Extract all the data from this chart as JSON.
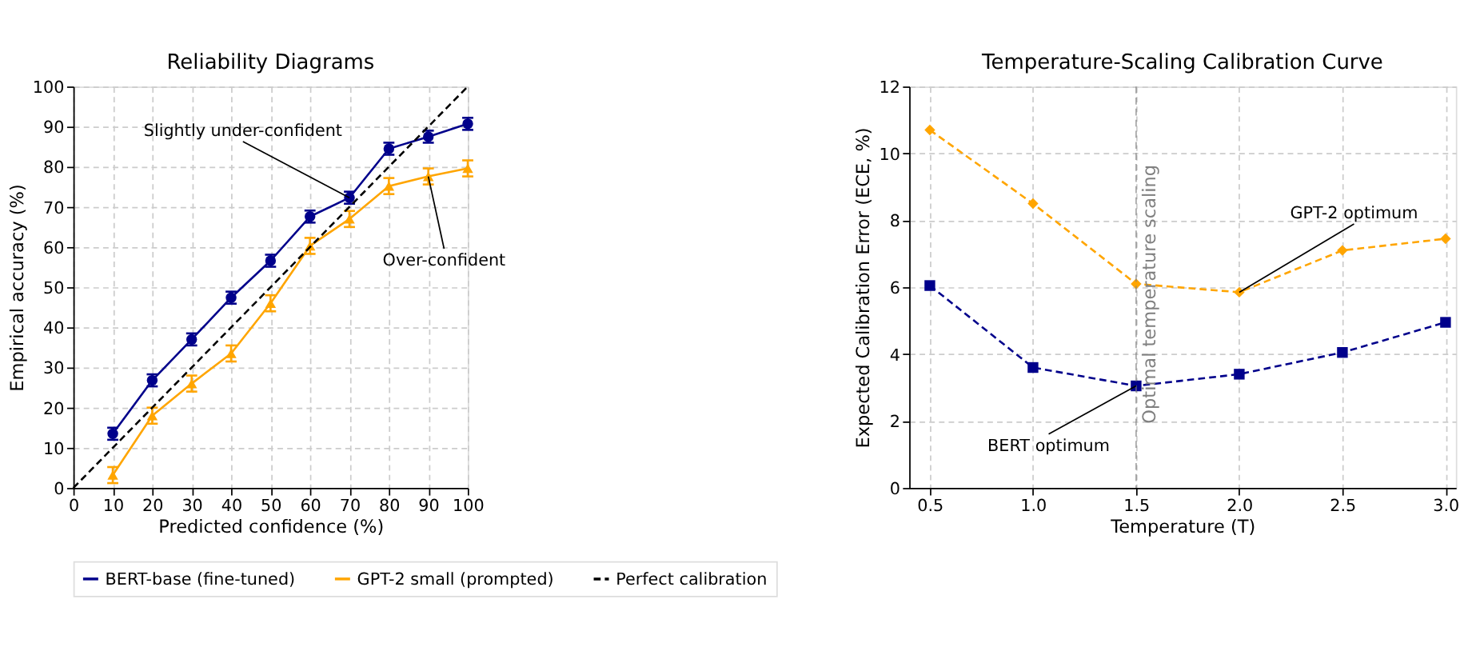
{
  "chart_data": [
    {
      "type": "line",
      "title": "Reliability Diagrams",
      "xlabel": "Predicted confidence (%)",
      "ylabel": "Empirical accuracy (%)",
      "x": [
        10,
        20,
        30,
        40,
        50,
        60,
        70,
        80,
        90,
        100
      ],
      "xlim": [
        0,
        100
      ],
      "xticks": [
        0,
        10,
        20,
        30,
        40,
        50,
        60,
        70,
        80,
        90,
        100
      ],
      "ylim": [
        0,
        100
      ],
      "yticks": [
        0,
        10,
        20,
        30,
        40,
        50,
        60,
        70,
        80,
        90,
        100
      ],
      "grid": true,
      "legend": "bottom",
      "series": [
        {
          "name": "BERT-base (fine-tuned)",
          "color": "#00008b",
          "marker": "circle",
          "line_style": "solid",
          "values": [
            13.5,
            26.8,
            37,
            47.4,
            56.6,
            67.6,
            72.3,
            84.5,
            87.5,
            90.7
          ],
          "errors": [
            1.5,
            1.5,
            1.5,
            1.5,
            1.5,
            1.5,
            1.5,
            1.5,
            1.5,
            1.5
          ]
        },
        {
          "name": "GPT-2 small (prompted)",
          "color": "#ffa500",
          "marker": "triangle",
          "line_style": "solid",
          "values": [
            3.2,
            18,
            26,
            33.5,
            46,
            60.3,
            67,
            75.2,
            77.6,
            79.6
          ],
          "errors": [
            2,
            2,
            2,
            2,
            2,
            2,
            2,
            2,
            2,
            2
          ]
        },
        {
          "name": "Perfect calibration",
          "color": "#000000",
          "marker": "none",
          "line_style": "dashed",
          "x": [
            0,
            100
          ],
          "values": [
            0,
            100
          ]
        }
      ],
      "annotations": [
        {
          "text": "Slightly under-confident",
          "x": 70,
          "y": 72.3
        },
        {
          "text": "Over-confident",
          "x": 90,
          "y": 77.6
        }
      ]
    },
    {
      "type": "line",
      "title": "Temperature-Scaling Calibration Curve",
      "xlabel": "Temperature (T)",
      "ylabel": "Expected Calibration Error (ECE, %)",
      "x": [
        0.5,
        1.0,
        1.5,
        2.0,
        2.5,
        3.0
      ],
      "xlim": [
        0.4,
        3.05
      ],
      "xticks": [
        {
          "value": 0.5,
          "label": "0.5"
        },
        {
          "value": 1.0,
          "label": "1.0"
        },
        {
          "value": 1.5,
          "label": "1.5"
        },
        {
          "value": 2.0,
          "label": "2.0"
        },
        {
          "value": 2.5,
          "label": "2.5"
        },
        {
          "value": 3.0,
          "label": "3.0"
        }
      ],
      "ylim": [
        0,
        12
      ],
      "yticks": [
        0,
        2,
        4,
        6,
        8,
        10,
        12
      ],
      "grid": true,
      "series": [
        {
          "color": "#00008b",
          "marker": "square",
          "line_style": "dashed",
          "values": [
            6.05,
            3.6,
            3.05,
            3.4,
            4.05,
            4.95
          ]
        },
        {
          "color": "#ffa500",
          "marker": "diamond",
          "line_style": "dashed",
          "values": [
            10.7,
            8.5,
            6.1,
            5.85,
            7.1,
            7.45
          ]
        }
      ],
      "ref_lines": [
        {
          "axis": "x",
          "value": 1.5,
          "label": "Optimal temperature scaling",
          "color": "#808080",
          "line_style": "dashed"
        }
      ],
      "annotations": [
        {
          "text": "BERT optimum",
          "x": 1.5,
          "y": 3.05
        },
        {
          "text": "GPT-2 optimum",
          "x": 2.0,
          "y": 5.85
        }
      ]
    }
  ]
}
